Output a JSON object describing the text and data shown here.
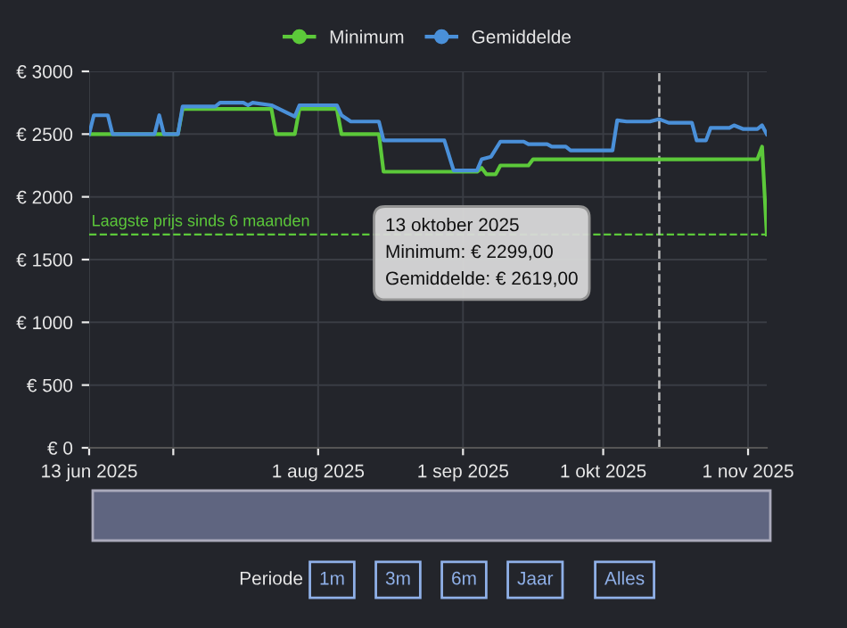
{
  "chart_data": {
    "type": "line",
    "legend": "top",
    "grid": true,
    "marker": "none",
    "line_style": "solid",
    "xlim": [
      "2025-06-13",
      "2025-11-05"
    ],
    "xticks": [
      {
        "value": "2025-06-13",
        "label": "13 jun 2025"
      },
      {
        "value": "2025-07-01",
        "label": null
      },
      {
        "value": "2025-08-01",
        "label": "1 aug 2025"
      },
      {
        "value": "2025-09-01",
        "label": "1 sep 2025"
      },
      {
        "value": "2025-10-01",
        "label": "1 okt 2025"
      },
      {
        "value": "2025-11-01",
        "label": "1 nov 2025"
      }
    ],
    "ylim": [
      0,
      3000
    ],
    "yticks": [
      {
        "value": 0,
        "label": "€ 0"
      },
      {
        "value": 500,
        "label": "€ 500"
      },
      {
        "value": 1000,
        "label": "€ 1000"
      },
      {
        "value": 1500,
        "label": "€ 1500"
      },
      {
        "value": 2000,
        "label": "€ 2000"
      },
      {
        "value": 2500,
        "label": "€ 2500"
      },
      {
        "value": 3000,
        "label": "€ 3000"
      }
    ],
    "series": [
      {
        "name": "Minimum",
        "color": "#5cc93a",
        "x": [
          "2025-06-13",
          "2025-07-02",
          "2025-07-03",
          "2025-07-22",
          "2025-07-23",
          "2025-07-27",
          "2025-07-28",
          "2025-08-05",
          "2025-08-06",
          "2025-08-14",
          "2025-08-15",
          "2025-09-04",
          "2025-09-05",
          "2025-09-06",
          "2025-09-08",
          "2025-09-09",
          "2025-09-15",
          "2025-09-16",
          "2025-10-13",
          "2025-11-03",
          "2025-11-04",
          "2025-11-05"
        ],
        "values": [
          2500,
          2500,
          2700,
          2700,
          2500,
          2500,
          2700,
          2700,
          2500,
          2500,
          2200,
          2200,
          2230,
          2180,
          2180,
          2250,
          2250,
          2300,
          2299,
          2300,
          2400,
          1700
        ]
      },
      {
        "name": "Gemiddelde",
        "color": "#4a90d9",
        "x": [
          "2025-06-13",
          "2025-06-14",
          "2025-06-17",
          "2025-06-18",
          "2025-06-27",
          "2025-06-28",
          "2025-06-29",
          "2025-07-02",
          "2025-07-03",
          "2025-07-10",
          "2025-07-11",
          "2025-07-16",
          "2025-07-17",
          "2025-07-18",
          "2025-07-22",
          "2025-07-27",
          "2025-07-28",
          "2025-08-05",
          "2025-08-06",
          "2025-08-08",
          "2025-08-14",
          "2025-08-15",
          "2025-08-28",
          "2025-08-30",
          "2025-09-04",
          "2025-09-05",
          "2025-09-07",
          "2025-09-09",
          "2025-09-14",
          "2025-09-15",
          "2025-09-19",
          "2025-09-20",
          "2025-09-23",
          "2025-09-24",
          "2025-10-03",
          "2025-10-04",
          "2025-10-06",
          "2025-10-11",
          "2025-10-13",
          "2025-10-15",
          "2025-10-20",
          "2025-10-21",
          "2025-10-23",
          "2025-10-24",
          "2025-10-28",
          "2025-10-29",
          "2025-10-31",
          "2025-11-03",
          "2025-11-04",
          "2025-11-05"
        ],
        "values": [
          2500,
          2650,
          2650,
          2500,
          2500,
          2650,
          2500,
          2500,
          2720,
          2720,
          2750,
          2750,
          2730,
          2750,
          2730,
          2640,
          2730,
          2730,
          2650,
          2600,
          2600,
          2450,
          2450,
          2210,
          2210,
          2300,
          2320,
          2440,
          2440,
          2420,
          2420,
          2400,
          2400,
          2370,
          2370,
          2610,
          2600,
          2600,
          2619,
          2590,
          2590,
          2450,
          2450,
          2550,
          2550,
          2570,
          2540,
          2540,
          2570,
          2500
        ]
      }
    ],
    "ref_lines": [
      {
        "axis": "y",
        "value": 1700,
        "label": "Laagste prijs sinds 6 maanden",
        "color": "#5cc93a",
        "line_style": "dashed"
      },
      {
        "axis": "x",
        "value": "2025-10-13",
        "label": null,
        "color": "#bbbbbb",
        "line_style": "dashed"
      }
    ],
    "annotations": [
      "13 oktober 2025\nMinimum: € 2299,00\nGemiddelde: € 2619,00",
      "Periode",
      "1m",
      "3m",
      "6m",
      "Jaar",
      "Alles"
    ]
  }
}
